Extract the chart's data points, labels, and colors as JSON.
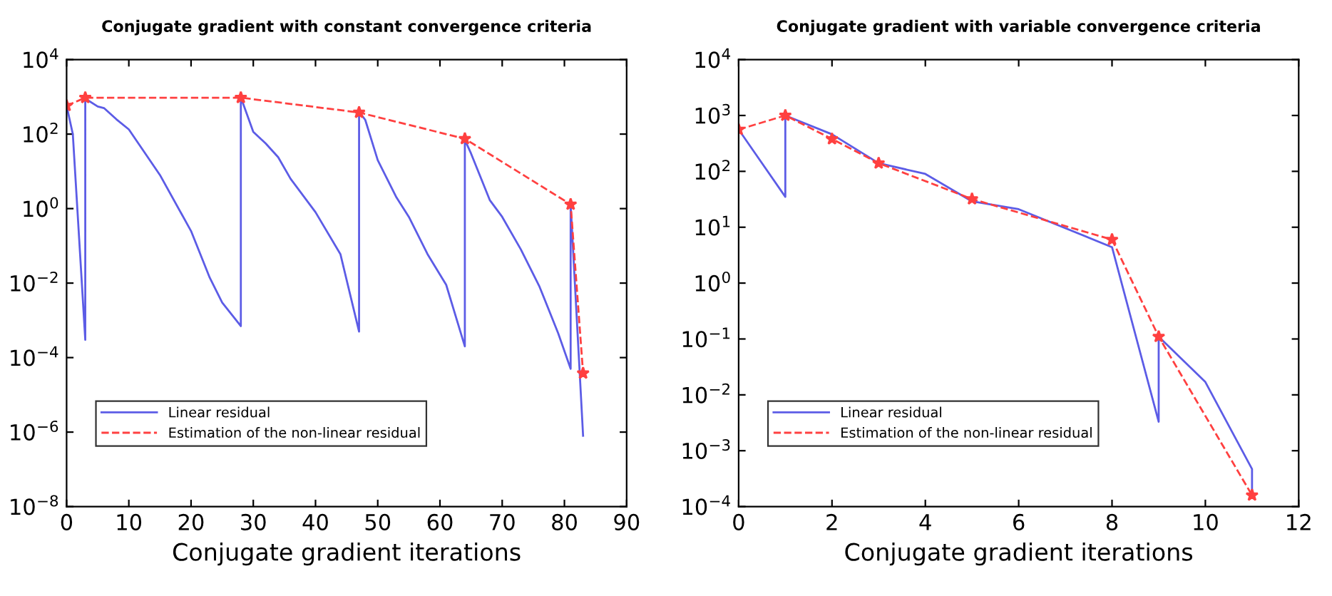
{
  "chart_data": [
    {
      "type": "line",
      "title": "Conjugate gradient with constant convergence criteria",
      "xlabel": "Conjugate gradient iterations",
      "log": "y",
      "legend": "bottom left",
      "xlim": [
        0,
        90
      ],
      "xticks": [
        0,
        10,
        20,
        30,
        40,
        50,
        60,
        70,
        80,
        90
      ],
      "ylim": [
        1e-08,
        10000.0
      ],
      "yticks": [
        {
          "value": 1e-08,
          "label": "10$^{−8}$"
        },
        {
          "value": 1e-06,
          "label": "10$^{−6}$"
        },
        {
          "value": 0.0001,
          "label": "10$^{−4}$"
        },
        {
          "value": 0.01,
          "label": "10$^{−2}$"
        },
        {
          "value": 1,
          "label": "10$^{0}$"
        },
        {
          "value": 100,
          "label": "10$^{2}$"
        },
        {
          "value": 10000,
          "label": "10$^{4}$"
        }
      ],
      "series": [
        {
          "name": "Linear residual",
          "color": "#5c5ce6",
          "line_style": "solid",
          "marker": "none",
          "x": [
            0,
            1,
            3,
            3,
            5,
            6,
            8,
            10,
            15,
            20,
            23,
            25,
            28,
            28,
            30,
            32,
            34,
            36,
            40,
            44,
            47,
            47,
            48,
            50,
            53,
            55,
            58,
            61,
            64,
            64,
            65,
            68,
            70,
            73,
            76,
            79,
            81,
            81,
            83
          ],
          "values": [
            580,
            100,
            0.0003,
            900,
            550,
            500,
            250,
            134,
            8,
            0.25,
            0.014,
            0.003,
            0.0007,
            970,
            115,
            56,
            24,
            6.3,
            0.8,
            0.06,
            0.0005,
            400,
            240,
            20,
            2,
            0.6,
            0.06,
            0.009,
            0.0002,
            70,
            30,
            1.7,
            0.6,
            0.08,
            0.008,
            0.00045,
            5e-05,
            1.3,
            8e-07
          ]
        },
        {
          "name": "Estimation of the non-linear residual",
          "color": "#ff4040",
          "line_style": "dashed",
          "marker": "star",
          "x": [
            0,
            3,
            28,
            47,
            64,
            81,
            83
          ],
          "values": [
            580,
            950,
            950,
            380,
            75,
            1.3,
            3.8e-05
          ]
        }
      ]
    },
    {
      "type": "line",
      "title": "Conjugate gradient with variable convergence criteria",
      "xlabel": "Conjugate gradient iterations",
      "log": "y",
      "legend": "bottom left",
      "xlim": [
        0,
        12
      ],
      "xticks": [
        0,
        2,
        4,
        6,
        8,
        10,
        12
      ],
      "ylim": [
        0.0001,
        10000.0
      ],
      "yticks": [
        {
          "value": 0.0001,
          "label": "10$^{−4}$"
        },
        {
          "value": 0.001,
          "label": "10$^{−3}$"
        },
        {
          "value": 0.01,
          "label": "10$^{−2}$"
        },
        {
          "value": 0.1,
          "label": "10$^{−1}$"
        },
        {
          "value": 1,
          "label": "10$^{0}$"
        },
        {
          "value": 10,
          "label": "10$^{1}$"
        },
        {
          "value": 100,
          "label": "10$^{2}$"
        },
        {
          "value": 1000,
          "label": "10$^{3}$"
        },
        {
          "value": 10000,
          "label": "10$^{4}$"
        }
      ],
      "series": [
        {
          "name": "Linear residual",
          "color": "#5c5ce6",
          "line_style": "solid",
          "marker": "none",
          "x": [
            0,
            1,
            1,
            2,
            3,
            4,
            5,
            6,
            8,
            9,
            9,
            10,
            11,
            11
          ],
          "values": [
            560,
            35,
            1000,
            460,
            140,
            90,
            29,
            21,
            4.4,
            0.0033,
            0.11,
            0.017,
            0.00047,
            0.00016
          ]
        },
        {
          "name": "Estimation of the non-linear residual",
          "color": "#ff4040",
          "line_style": "dashed",
          "marker": "star",
          "x": [
            0,
            1,
            2,
            3,
            5,
            8,
            9,
            11
          ],
          "values": [
            560,
            1000,
            380,
            140,
            32,
            6,
            0.11,
            0.00016
          ]
        }
      ]
    }
  ]
}
